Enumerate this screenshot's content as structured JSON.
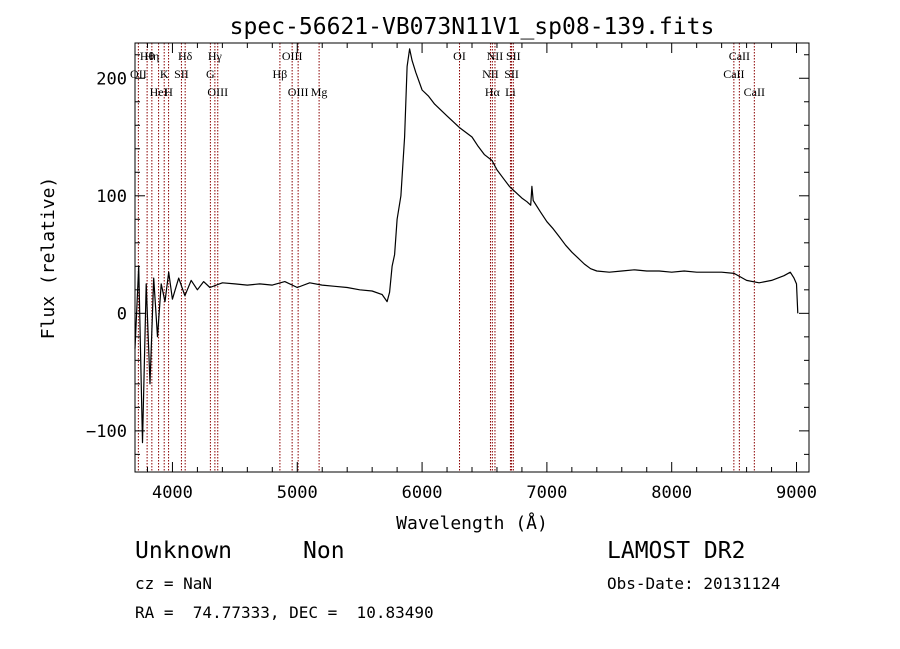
{
  "chart_data": {
    "type": "line",
    "title": "spec-56621-VB073N11V1_sp08-139.fits",
    "xlabel": "Wavelength (Å)",
    "ylabel": "Flux (relative)",
    "xlim": [
      3700,
      9100
    ],
    "ylim": [
      -135,
      230
    ],
    "x_ticks": [
      4000,
      5000,
      6000,
      7000,
      8000,
      9000
    ],
    "y_ticks": [
      -100,
      0,
      100,
      200
    ],
    "grid": false,
    "series": [
      {
        "line_color": "#000000",
        "points": [
          [
            3700,
            -30
          ],
          [
            3730,
            40
          ],
          [
            3760,
            -110
          ],
          [
            3790,
            25
          ],
          [
            3820,
            -60
          ],
          [
            3850,
            30
          ],
          [
            3880,
            -20
          ],
          [
            3910,
            25
          ],
          [
            3940,
            10
          ],
          [
            3970,
            35
          ],
          [
            4000,
            12
          ],
          [
            4050,
            30
          ],
          [
            4100,
            15
          ],
          [
            4150,
            28
          ],
          [
            4200,
            20
          ],
          [
            4250,
            27
          ],
          [
            4300,
            22
          ],
          [
            4400,
            26
          ],
          [
            4500,
            25
          ],
          [
            4600,
            24
          ],
          [
            4700,
            25
          ],
          [
            4800,
            24
          ],
          [
            4900,
            27
          ],
          [
            5000,
            22
          ],
          [
            5100,
            26
          ],
          [
            5200,
            24
          ],
          [
            5300,
            23
          ],
          [
            5400,
            22
          ],
          [
            5500,
            20
          ],
          [
            5600,
            19
          ],
          [
            5680,
            16
          ],
          [
            5720,
            10
          ],
          [
            5740,
            18
          ],
          [
            5760,
            40
          ],
          [
            5780,
            50
          ],
          [
            5800,
            80
          ],
          [
            5830,
            100
          ],
          [
            5860,
            150
          ],
          [
            5880,
            210
          ],
          [
            5900,
            225
          ],
          [
            5920,
            215
          ],
          [
            5950,
            205
          ],
          [
            6000,
            190
          ],
          [
            6050,
            185
          ],
          [
            6100,
            178
          ],
          [
            6200,
            168
          ],
          [
            6300,
            158
          ],
          [
            6400,
            150
          ],
          [
            6450,
            142
          ],
          [
            6500,
            135
          ],
          [
            6560,
            130
          ],
          [
            6600,
            122
          ],
          [
            6650,
            115
          ],
          [
            6700,
            108
          ],
          [
            6760,
            102
          ],
          [
            6800,
            98
          ],
          [
            6840,
            95
          ],
          [
            6870,
            92
          ],
          [
            6880,
            108
          ],
          [
            6890,
            96
          ],
          [
            6950,
            86
          ],
          [
            7000,
            78
          ],
          [
            7050,
            72
          ],
          [
            7100,
            65
          ],
          [
            7150,
            58
          ],
          [
            7200,
            52
          ],
          [
            7250,
            47
          ],
          [
            7300,
            42
          ],
          [
            7350,
            38
          ],
          [
            7400,
            36
          ],
          [
            7500,
            35
          ],
          [
            7600,
            36
          ],
          [
            7700,
            37
          ],
          [
            7800,
            36
          ],
          [
            7900,
            36
          ],
          [
            8000,
            35
          ],
          [
            8100,
            36
          ],
          [
            8200,
            35
          ],
          [
            8300,
            35
          ],
          [
            8400,
            35
          ],
          [
            8500,
            34
          ],
          [
            8600,
            28
          ],
          [
            8700,
            26
          ],
          [
            8800,
            28
          ],
          [
            8900,
            32
          ],
          [
            8950,
            35
          ],
          [
            8980,
            30
          ],
          [
            9000,
            25
          ],
          [
            9010,
            0
          ]
        ]
      }
    ],
    "lines_color": "#8b0000",
    "emission_lines": [
      {
        "label": "Hθ",
        "x": 3797
      },
      {
        "label": "OII",
        "x": 3727
      },
      {
        "label": "HeI",
        "x": 3889
      },
      {
        "label": "Hη",
        "x": 3835
      },
      {
        "label": "K",
        "x": 3934
      },
      {
        "label": "H",
        "x": 3969
      },
      {
        "label": "Hδ",
        "x": 4102
      },
      {
        "label": "SII",
        "x": 4072
      },
      {
        "label": "OIII",
        "x": 4363
      },
      {
        "label": "Hγ",
        "x": 4340
      },
      {
        "label": "G",
        "x": 4304
      },
      {
        "label": "OIII",
        "x": 5007
      },
      {
        "label": "OIII",
        "x": 4959
      },
      {
        "label": "Hβ",
        "x": 4861
      },
      {
        "label": "Mg",
        "x": 5175
      },
      {
        "label": "OI",
        "x": 6300
      },
      {
        "label": "NII",
        "x": 6548
      },
      {
        "label": "Li",
        "x": 6708
      },
      {
        "label": "NII",
        "x": 6584
      },
      {
        "label": "SII",
        "x": 6717
      },
      {
        "label": "Hα",
        "x": 6563
      },
      {
        "label": "SII",
        "x": 6731
      },
      {
        "label": "CaII",
        "x": 8498
      },
      {
        "label": "CaII",
        "x": 8662
      },
      {
        "label": "CaII",
        "x": 8542
      }
    ]
  },
  "footer": {
    "class_text": "Unknown",
    "subclass_text": "Non",
    "survey": "LAMOST DR2",
    "redshift": "cz = NaN",
    "obs_date": "Obs-Date: 20131124",
    "coords": "RA =  74.77333, DEC =  10.83490"
  }
}
